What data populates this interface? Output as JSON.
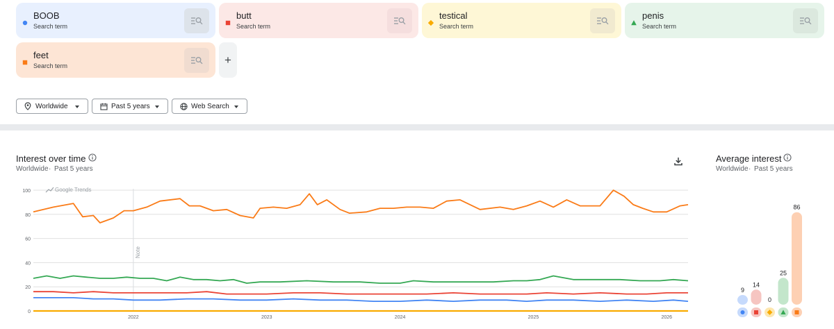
{
  "terms": [
    {
      "name": "BOOB",
      "sub": "Search term",
      "color": "#4285f4",
      "shape": "circle",
      "bg": "#e8f0fe",
      "btn": "#dde3ea"
    },
    {
      "name": "butt",
      "sub": "Search term",
      "color": "#ea4335",
      "shape": "square",
      "bg": "#fce8e6",
      "btn": "#f5dede"
    },
    {
      "name": "testical",
      "sub": "Search term",
      "color": "#f9ab00",
      "shape": "diamond",
      "bg": "#fef7d6",
      "btn": "#f1ead0"
    },
    {
      "name": "penis",
      "sub": "Search term",
      "color": "#34a853",
      "shape": "triangle",
      "bg": "#e6f4ea",
      "btn": "#dbe8de"
    },
    {
      "name": "feet",
      "sub": "Search term",
      "color": "#fa7b17",
      "shape": "square",
      "bg": "#fde5d5",
      "btn": "#f0dcd0"
    }
  ],
  "add_label": "+",
  "filters": {
    "location": "Worldwide",
    "time": "Past 5 years",
    "property": "Web Search"
  },
  "interest": {
    "title": "Interest over time",
    "sub_location": "Worldwide",
    "sub_dot": "·",
    "sub_time": "Past 5 years",
    "watermark": "Google Trends",
    "note": "Note"
  },
  "average": {
    "title": "Average interest",
    "sub_location": "Worldwide",
    "sub_dot": "·",
    "sub_time": "Past 5 years"
  },
  "chart_data": {
    "type": "line",
    "title": "Interest over time",
    "ylim": [
      0,
      100
    ],
    "yticks": [
      0,
      20,
      40,
      60,
      80,
      100
    ],
    "xticks": [
      "2022",
      "2023",
      "2024",
      "2025",
      "2026"
    ],
    "x_range": [
      2021.25,
      2026.16
    ],
    "xtick_values": [
      2022,
      2023,
      2024,
      2025,
      2026
    ],
    "note_x": 2022,
    "series": [
      {
        "name": "feet",
        "color": "#fa7b17",
        "x": [
          2021.25,
          2021.4,
          2021.55,
          2021.62,
          2021.7,
          2021.75,
          2021.85,
          2021.93,
          2022.0,
          2022.1,
          2022.2,
          2022.35,
          2022.42,
          2022.5,
          2022.6,
          2022.7,
          2022.8,
          2022.9,
          2022.95,
          2023.05,
          2023.15,
          2023.25,
          2023.32,
          2023.38,
          2023.45,
          2023.55,
          2023.62,
          2023.75,
          2023.85,
          2023.95,
          2024.05,
          2024.15,
          2024.25,
          2024.35,
          2024.45,
          2024.6,
          2024.75,
          2024.85,
          2024.95,
          2025.05,
          2025.15,
          2025.25,
          2025.35,
          2025.42,
          2025.5,
          2025.6,
          2025.68,
          2025.75,
          2025.82,
          2025.9,
          2026.0,
          2026.1,
          2026.16
        ],
        "y": [
          82,
          86,
          89,
          78,
          79,
          73,
          77,
          83,
          83,
          86,
          91,
          93,
          87,
          87,
          83,
          84,
          79,
          77,
          85,
          86,
          85,
          88,
          97,
          88,
          92,
          84,
          81,
          82,
          85,
          85,
          86,
          86,
          85,
          91,
          92,
          84,
          86,
          84,
          87,
          91,
          86,
          92,
          87,
          87,
          87,
          100,
          95,
          88,
          85,
          82,
          82,
          87,
          88
        ]
      },
      {
        "name": "penis",
        "color": "#34a853",
        "x": [
          2021.25,
          2021.35,
          2021.45,
          2021.55,
          2021.65,
          2021.75,
          2021.85,
          2021.95,
          2022.05,
          2022.15,
          2022.25,
          2022.35,
          2022.45,
          2022.55,
          2022.65,
          2022.75,
          2022.85,
          2022.95,
          2023.1,
          2023.3,
          2023.5,
          2023.7,
          2023.85,
          2024.0,
          2024.1,
          2024.25,
          2024.4,
          2024.55,
          2024.7,
          2024.85,
          2024.95,
          2025.05,
          2025.15,
          2025.3,
          2025.5,
          2025.65,
          2025.8,
          2025.95,
          2026.05,
          2026.16
        ],
        "y": [
          27,
          29,
          27,
          29,
          28,
          27,
          27,
          28,
          27,
          27,
          25,
          28,
          26,
          26,
          25,
          26,
          23,
          24,
          24,
          25,
          24,
          24,
          23,
          23,
          25,
          24,
          24,
          24,
          24,
          25,
          25,
          26,
          29,
          26,
          26,
          26,
          25,
          25,
          26,
          25
        ]
      },
      {
        "name": "butt",
        "color": "#ea4335",
        "x": [
          2021.25,
          2021.4,
          2021.55,
          2021.7,
          2021.85,
          2022.0,
          2022.2,
          2022.4,
          2022.55,
          2022.7,
          2022.85,
          2023.0,
          2023.2,
          2023.4,
          2023.6,
          2023.8,
          2024.0,
          2024.2,
          2024.4,
          2024.6,
          2024.8,
          2024.95,
          2025.1,
          2025.3,
          2025.5,
          2025.7,
          2025.85,
          2026.0,
          2026.16
        ],
        "y": [
          16,
          16,
          15,
          16,
          15,
          15,
          15,
          15,
          16,
          14,
          14,
          14,
          15,
          15,
          14,
          14,
          14,
          14,
          15,
          14,
          14,
          14,
          15,
          14,
          15,
          14,
          14,
          15,
          15
        ]
      },
      {
        "name": "BOOB",
        "color": "#4285f4",
        "x": [
          2021.25,
          2021.4,
          2021.55,
          2021.7,
          2021.85,
          2022.0,
          2022.2,
          2022.4,
          2022.6,
          2022.8,
          2023.0,
          2023.2,
          2023.4,
          2023.6,
          2023.8,
          2024.0,
          2024.2,
          2024.4,
          2024.6,
          2024.8,
          2024.95,
          2025.1,
          2025.3,
          2025.5,
          2025.7,
          2025.9,
          2026.05,
          2026.16
        ],
        "y": [
          11,
          11,
          11,
          10,
          10,
          9,
          9,
          10,
          10,
          9,
          9,
          10,
          9,
          9,
          8,
          8,
          9,
          8,
          9,
          9,
          8,
          9,
          9,
          8,
          9,
          8,
          9,
          8
        ]
      },
      {
        "name": "testical",
        "color": "#f9ab00",
        "x": [
          2021.25,
          2026.16
        ],
        "y": [
          0,
          0
        ]
      }
    ]
  },
  "average_data": {
    "type": "bar",
    "categories": [
      "BOOB",
      "butt",
      "testical",
      "penis",
      "feet"
    ],
    "values": [
      9,
      14,
      0,
      25,
      86
    ],
    "labels": [
      "9",
      "14",
      "0",
      "25",
      "86"
    ],
    "colors": [
      "#4285f4",
      "#ea4335",
      "#f9ab00",
      "#34a853",
      "#fa7b17"
    ],
    "light": [
      "#c6dafc",
      "#f6c5c1",
      "#fde7b0",
      "#c3e6cb",
      "#fdd0b3"
    ],
    "shapes": [
      "circle",
      "square",
      "diamond",
      "triangle",
      "square"
    ]
  }
}
